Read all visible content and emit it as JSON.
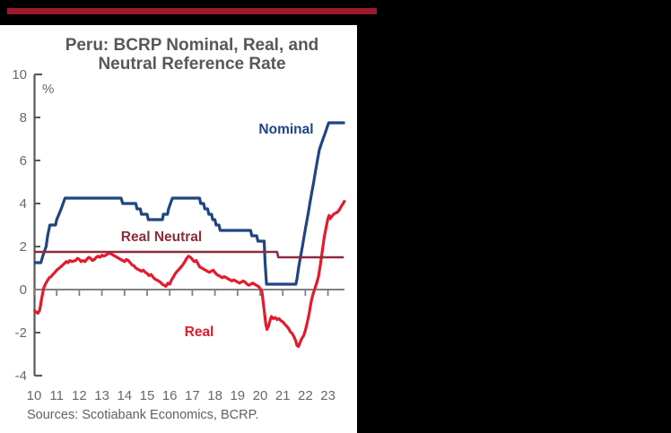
{
  "page": {
    "background_color": "#000000",
    "accent_bar_color": "#9E1B2F",
    "card_color": "#FFFFFF"
  },
  "chart": {
    "title_line1": "Peru: BCRP Nominal, Real, and",
    "title_line2": "Neutral Reference Rate",
    "unit": "%",
    "source": "Sources: Scotiabank Economics, BCRP."
  },
  "chart_data": {
    "type": "line",
    "title": "Peru: BCRP Nominal, Real, and Neutral Reference Rate",
    "ylabel": "%",
    "ylim": [
      -4,
      10
    ],
    "xlim": [
      2010,
      2023.75
    ],
    "grid": false,
    "legend_position": "inline-annotations",
    "y_ticks": [
      {
        "label": "10",
        "v": 10
      },
      {
        "label": "8",
        "v": 8
      },
      {
        "label": "6",
        "v": 6
      },
      {
        "label": "4",
        "v": 4
      },
      {
        "label": "2",
        "v": 2
      },
      {
        "label": "0",
        "v": 0
      },
      {
        "label": "-2",
        "v": -2
      },
      {
        "label": "-4",
        "v": -4
      }
    ],
    "x_ticks": [
      {
        "label": "10",
        "t": 2010
      },
      {
        "label": "11",
        "t": 2011
      },
      {
        "label": "12",
        "t": 2012
      },
      {
        "label": "13",
        "t": 2013
      },
      {
        "label": "14",
        "t": 2014
      },
      {
        "label": "15",
        "t": 2015
      },
      {
        "label": "16",
        "t": 2016
      },
      {
        "label": "17",
        "t": 2017
      },
      {
        "label": "18",
        "t": 2018
      },
      {
        "label": "19",
        "t": 2019
      },
      {
        "label": "20",
        "t": 2020
      },
      {
        "label": "21",
        "t": 2021
      },
      {
        "label": "22",
        "t": 2022
      },
      {
        "label": "23",
        "t": 2023
      }
    ],
    "axis_color": "#58595B",
    "tick_label_color": "#66686B",
    "zero_line_color": "#7E8083",
    "axis_tick_values": [
      8,
      6,
      4,
      2,
      -2
    ],
    "layout": {
      "x0": 38,
      "pxPerYear": 25.2,
      "yZero": 323,
      "pxPerUnit": 24,
      "axisX": 38.5,
      "axisTop": 83,
      "axisBottom": 419,
      "axisCapLen": 8.5,
      "axisTickLen": 6.5,
      "zeroX1": 38,
      "zeroX2": 384,
      "xTickDrop": 7,
      "yLabelX": 30,
      "xLabelY": 446,
      "tickFontSize": 15
    },
    "series": [
      {
        "name": "Nominal",
        "color": "#1F4582",
        "width": 3.2,
        "points": [
          [
            2010.0,
            1.25
          ],
          [
            2010.3,
            1.25
          ],
          [
            2010.37,
            1.5
          ],
          [
            2010.45,
            1.75
          ],
          [
            2010.53,
            2.0
          ],
          [
            2010.6,
            2.5
          ],
          [
            2010.7,
            3.0
          ],
          [
            2010.95,
            3.0
          ],
          [
            2011.0,
            3.25
          ],
          [
            2011.1,
            3.5
          ],
          [
            2011.2,
            3.75
          ],
          [
            2011.28,
            4.0
          ],
          [
            2011.37,
            4.25
          ],
          [
            2013.85,
            4.25
          ],
          [
            2013.92,
            4.0
          ],
          [
            2014.5,
            4.0
          ],
          [
            2014.55,
            3.75
          ],
          [
            2014.7,
            3.75
          ],
          [
            2014.75,
            3.5
          ],
          [
            2015.0,
            3.5
          ],
          [
            2015.05,
            3.25
          ],
          [
            2015.68,
            3.25
          ],
          [
            2015.72,
            3.5
          ],
          [
            2015.9,
            3.5
          ],
          [
            2015.95,
            3.75
          ],
          [
            2016.03,
            4.0
          ],
          [
            2016.12,
            4.25
          ],
          [
            2017.32,
            4.25
          ],
          [
            2017.37,
            4.0
          ],
          [
            2017.5,
            4.0
          ],
          [
            2017.55,
            3.75
          ],
          [
            2017.68,
            3.75
          ],
          [
            2017.73,
            3.5
          ],
          [
            2017.85,
            3.5
          ],
          [
            2017.9,
            3.25
          ],
          [
            2018.0,
            3.25
          ],
          [
            2018.05,
            3.0
          ],
          [
            2018.18,
            3.0
          ],
          [
            2018.23,
            2.75
          ],
          [
            2019.58,
            2.75
          ],
          [
            2019.63,
            2.5
          ],
          [
            2019.85,
            2.5
          ],
          [
            2019.9,
            2.25
          ],
          [
            2020.18,
            2.25
          ],
          [
            2020.22,
            1.25
          ],
          [
            2020.28,
            0.25
          ],
          [
            2021.58,
            0.25
          ],
          [
            2021.63,
            0.5
          ],
          [
            2021.7,
            1.0
          ],
          [
            2021.78,
            1.5
          ],
          [
            2021.87,
            2.0
          ],
          [
            2021.95,
            2.5
          ],
          [
            2022.03,
            3.0
          ],
          [
            2022.12,
            3.5
          ],
          [
            2022.2,
            4.0
          ],
          [
            2022.28,
            4.5
          ],
          [
            2022.37,
            5.0
          ],
          [
            2022.45,
            5.5
          ],
          [
            2022.53,
            6.0
          ],
          [
            2022.62,
            6.5
          ],
          [
            2022.7,
            6.75
          ],
          [
            2022.78,
            7.0
          ],
          [
            2022.87,
            7.25
          ],
          [
            2022.95,
            7.5
          ],
          [
            2023.03,
            7.75
          ],
          [
            2023.75,
            7.75
          ]
        ]
      },
      {
        "name": "Real",
        "color": "#E51A2C",
        "width": 3.2,
        "points": [
          [
            2010.0,
            -0.95
          ],
          [
            2010.08,
            -1.05
          ],
          [
            2010.17,
            -1.1
          ],
          [
            2010.25,
            -0.95
          ],
          [
            2010.33,
            -0.45
          ],
          [
            2010.42,
            0.05
          ],
          [
            2010.5,
            0.25
          ],
          [
            2010.58,
            0.4
          ],
          [
            2010.67,
            0.55
          ],
          [
            2010.75,
            0.6
          ],
          [
            2010.83,
            0.7
          ],
          [
            2010.92,
            0.8
          ],
          [
            2011.0,
            0.9
          ],
          [
            2011.17,
            1.05
          ],
          [
            2011.33,
            1.2
          ],
          [
            2011.42,
            1.3
          ],
          [
            2011.5,
            1.25
          ],
          [
            2011.58,
            1.35
          ],
          [
            2011.67,
            1.3
          ],
          [
            2011.83,
            1.35
          ],
          [
            2011.92,
            1.45
          ],
          [
            2012.0,
            1.4
          ],
          [
            2012.08,
            1.3
          ],
          [
            2012.17,
            1.35
          ],
          [
            2012.25,
            1.3
          ],
          [
            2012.33,
            1.4
          ],
          [
            2012.42,
            1.5
          ],
          [
            2012.5,
            1.45
          ],
          [
            2012.58,
            1.35
          ],
          [
            2012.67,
            1.4
          ],
          [
            2012.75,
            1.5
          ],
          [
            2012.83,
            1.55
          ],
          [
            2012.92,
            1.5
          ],
          [
            2013.0,
            1.6
          ],
          [
            2013.08,
            1.55
          ],
          [
            2013.17,
            1.6
          ],
          [
            2013.25,
            1.65
          ],
          [
            2013.33,
            1.7
          ],
          [
            2013.42,
            1.65
          ],
          [
            2013.5,
            1.6
          ],
          [
            2013.58,
            1.55
          ],
          [
            2013.67,
            1.5
          ],
          [
            2013.75,
            1.45
          ],
          [
            2013.83,
            1.4
          ],
          [
            2013.92,
            1.35
          ],
          [
            2014.0,
            1.3
          ],
          [
            2014.08,
            1.4
          ],
          [
            2014.17,
            1.35
          ],
          [
            2014.25,
            1.25
          ],
          [
            2014.33,
            1.15
          ],
          [
            2014.42,
            1.1
          ],
          [
            2014.5,
            1.0
          ],
          [
            2014.58,
            0.95
          ],
          [
            2014.67,
            0.9
          ],
          [
            2014.75,
            0.85
          ],
          [
            2014.83,
            0.9
          ],
          [
            2014.92,
            0.8
          ],
          [
            2015.0,
            0.75
          ],
          [
            2015.08,
            0.65
          ],
          [
            2015.17,
            0.7
          ],
          [
            2015.25,
            0.6
          ],
          [
            2015.33,
            0.5
          ],
          [
            2015.42,
            0.45
          ],
          [
            2015.5,
            0.4
          ],
          [
            2015.58,
            0.35
          ],
          [
            2015.67,
            0.25
          ],
          [
            2015.75,
            0.2
          ],
          [
            2015.83,
            0.15
          ],
          [
            2015.92,
            0.3
          ],
          [
            2016.0,
            0.25
          ],
          [
            2016.08,
            0.45
          ],
          [
            2016.17,
            0.6
          ],
          [
            2016.25,
            0.75
          ],
          [
            2016.33,
            0.85
          ],
          [
            2016.42,
            0.95
          ],
          [
            2016.5,
            1.05
          ],
          [
            2016.58,
            1.15
          ],
          [
            2016.67,
            1.3
          ],
          [
            2016.75,
            1.45
          ],
          [
            2016.83,
            1.55
          ],
          [
            2016.92,
            1.5
          ],
          [
            2017.0,
            1.4
          ],
          [
            2017.08,
            1.3
          ],
          [
            2017.17,
            1.35
          ],
          [
            2017.25,
            1.2
          ],
          [
            2017.33,
            1.05
          ],
          [
            2017.42,
            1.0
          ],
          [
            2017.5,
            0.95
          ],
          [
            2017.58,
            0.9
          ],
          [
            2017.67,
            0.85
          ],
          [
            2017.75,
            0.8
          ],
          [
            2017.83,
            0.85
          ],
          [
            2017.92,
            0.9
          ],
          [
            2018.0,
            0.8
          ],
          [
            2018.08,
            0.7
          ],
          [
            2018.17,
            0.65
          ],
          [
            2018.25,
            0.6
          ],
          [
            2018.33,
            0.55
          ],
          [
            2018.42,
            0.6
          ],
          [
            2018.5,
            0.55
          ],
          [
            2018.58,
            0.5
          ],
          [
            2018.67,
            0.45
          ],
          [
            2018.75,
            0.4
          ],
          [
            2018.83,
            0.45
          ],
          [
            2018.92,
            0.4
          ],
          [
            2019.0,
            0.35
          ],
          [
            2019.08,
            0.3
          ],
          [
            2019.17,
            0.35
          ],
          [
            2019.25,
            0.4
          ],
          [
            2019.33,
            0.35
          ],
          [
            2019.42,
            0.25
          ],
          [
            2019.5,
            0.2
          ],
          [
            2019.58,
            0.25
          ],
          [
            2019.67,
            0.3
          ],
          [
            2019.75,
            0.25
          ],
          [
            2019.83,
            0.2
          ],
          [
            2019.92,
            0.15
          ],
          [
            2020.0,
            0.05
          ],
          [
            2020.08,
            -0.1
          ],
          [
            2020.17,
            -0.9
          ],
          [
            2020.25,
            -1.6
          ],
          [
            2020.3,
            -1.85
          ],
          [
            2020.37,
            -1.7
          ],
          [
            2020.45,
            -1.4
          ],
          [
            2020.5,
            -1.25
          ],
          [
            2020.58,
            -1.35
          ],
          [
            2020.67,
            -1.3
          ],
          [
            2020.75,
            -1.4
          ],
          [
            2020.83,
            -1.35
          ],
          [
            2020.92,
            -1.45
          ],
          [
            2021.0,
            -1.5
          ],
          [
            2021.08,
            -1.6
          ],
          [
            2021.17,
            -1.7
          ],
          [
            2021.25,
            -1.8
          ],
          [
            2021.33,
            -1.95
          ],
          [
            2021.42,
            -2.05
          ],
          [
            2021.5,
            -2.2
          ],
          [
            2021.58,
            -2.4
          ],
          [
            2021.63,
            -2.6
          ],
          [
            2021.7,
            -2.65
          ],
          [
            2021.75,
            -2.5
          ],
          [
            2021.83,
            -2.3
          ],
          [
            2021.92,
            -2.15
          ],
          [
            2022.0,
            -1.9
          ],
          [
            2022.08,
            -1.55
          ],
          [
            2022.17,
            -1.1
          ],
          [
            2022.25,
            -0.6
          ],
          [
            2022.33,
            -0.25
          ],
          [
            2022.42,
            0.05
          ],
          [
            2022.5,
            0.3
          ],
          [
            2022.58,
            0.6
          ],
          [
            2022.67,
            1.2
          ],
          [
            2022.75,
            1.8
          ],
          [
            2022.83,
            2.4
          ],
          [
            2022.92,
            2.9
          ],
          [
            2023.0,
            3.3
          ],
          [
            2023.05,
            3.45
          ],
          [
            2023.1,
            3.3
          ],
          [
            2023.17,
            3.4
          ],
          [
            2023.25,
            3.5
          ],
          [
            2023.33,
            3.55
          ],
          [
            2023.42,
            3.6
          ],
          [
            2023.5,
            3.7
          ],
          [
            2023.58,
            3.85
          ],
          [
            2023.67,
            4.0
          ],
          [
            2023.75,
            4.15
          ]
        ]
      },
      {
        "name": "Real Neutral",
        "color": "#8E2B3D",
        "width": 2.6,
        "points": [
          [
            2010.0,
            1.75
          ],
          [
            2020.75,
            1.75
          ],
          [
            2020.8,
            1.5
          ],
          [
            2023.7,
            1.5
          ]
        ]
      }
    ]
  }
}
